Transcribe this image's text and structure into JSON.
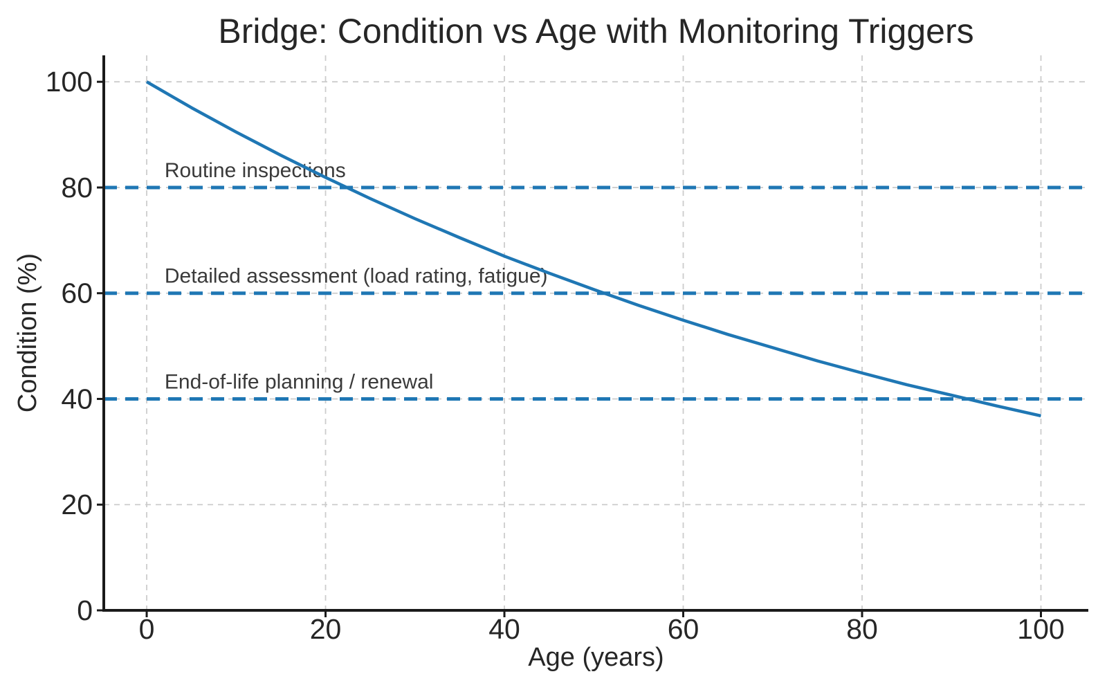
{
  "chart_data": {
    "type": "line",
    "title": "Bridge: Condition vs Age with Monitoring Triggers",
    "xlabel": "Age (years)",
    "ylabel": "Condition (%)",
    "x": [
      0,
      5,
      10,
      15,
      20,
      25,
      30,
      35,
      40,
      45,
      50,
      55,
      60,
      65,
      70,
      75,
      80,
      85,
      90,
      95,
      100
    ],
    "series": [
      {
        "name": "Condition",
        "values": [
          100.0,
          95.1,
          90.5,
          86.1,
          81.9,
          77.9,
          74.1,
          70.5,
          67.0,
          63.8,
          60.7,
          57.7,
          54.9,
          52.2,
          49.7,
          47.2,
          44.9,
          42.7,
          40.7,
          38.7,
          36.8
        ]
      }
    ],
    "xticks": [
      0,
      20,
      40,
      60,
      80,
      100
    ],
    "yticks": [
      0,
      20,
      40,
      60,
      80,
      100
    ],
    "xlim": [
      -4.8,
      105.3
    ],
    "ylim": [
      0,
      105
    ],
    "grid": true,
    "grid_style": "dashed",
    "legend_position": "none",
    "triggers": [
      {
        "y": 80,
        "label": "Routine inspections"
      },
      {
        "y": 60,
        "label": "Detailed assessment (load rating, fatigue)"
      },
      {
        "y": 40,
        "label": "End-of-life planning / renewal"
      }
    ],
    "colors": {
      "line": "#1f77b4",
      "trigger_line": "#1f77b4",
      "grid": "#cccccc",
      "spine": "#1a1a1a",
      "text": "#262626",
      "annotation_text": "#3a3a3a",
      "background": "#ffffff"
    }
  }
}
